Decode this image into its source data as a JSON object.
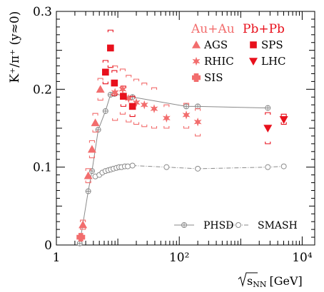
{
  "chart_data": {
    "type": "scatter",
    "title": "",
    "xlabel_prefix": "√",
    "xlabel_sub": "s",
    "xlabel_subscript": "NN",
    "xlabel_unit": "[GeV]",
    "ylabel": "K⁺/π⁺ (y≈0)",
    "xscale": "log",
    "xlim": [
      1,
      16000
    ],
    "ylim": [
      0,
      0.3
    ],
    "grid": false,
    "x_ticks": [
      {
        "value": 1,
        "label": "1"
      },
      {
        "value": 100,
        "label": "10²"
      },
      {
        "value": 10000,
        "label": "10⁴"
      }
    ],
    "y_ticks": [
      {
        "value": 0,
        "label": "0"
      },
      {
        "value": 0.1,
        "label": "0.1"
      },
      {
        "value": 0.2,
        "label": "0.2"
      },
      {
        "value": 0.3,
        "label": "0.3"
      }
    ],
    "legend_headers": [
      {
        "label": "Au+Au",
        "color": "#f26d6d"
      },
      {
        "label": "Pb+Pb",
        "color": "#e8101c"
      }
    ],
    "marker_series": [
      {
        "name": "AGS",
        "marker": "triangle-up",
        "color": "#f26d6d",
        "points": [
          {
            "x": 2.7,
            "y": 0.026
          },
          {
            "x": 3.3,
            "y": 0.089
          },
          {
            "x": 3.8,
            "y": 0.123
          },
          {
            "x": 4.3,
            "y": 0.157
          },
          {
            "x": 5.2,
            "y": 0.2
          }
        ]
      },
      {
        "name": "RHIC",
        "marker": "star",
        "color": "#f26d6d",
        "points": [
          {
            "x": 9,
            "y": 0.196
          },
          {
            "x": 12,
            "y": 0.2
          },
          {
            "x": 15,
            "y": 0.188
          },
          {
            "x": 20,
            "y": 0.183
          },
          {
            "x": 27,
            "y": 0.18
          },
          {
            "x": 39,
            "y": 0.175
          },
          {
            "x": 62,
            "y": 0.163
          },
          {
            "x": 130,
            "y": 0.167
          },
          {
            "x": 200,
            "y": 0.158
          }
        ]
      },
      {
        "name": "SIS",
        "marker": "cross",
        "color": "#f26d6d",
        "points": [
          {
            "x": 2.5,
            "y": 0.01
          }
        ]
      },
      {
        "name": "SPS",
        "marker": "square",
        "color": "#e8101c",
        "points": [
          {
            "x": 6.3,
            "y": 0.222
          },
          {
            "x": 7.6,
            "y": 0.253
          },
          {
            "x": 8.8,
            "y": 0.208
          },
          {
            "x": 12.3,
            "y": 0.191
          },
          {
            "x": 17.3,
            "y": 0.178
          }
        ]
      },
      {
        "name": "LHC",
        "marker": "triangle-down",
        "color": "#e8101c",
        "points": [
          {
            "x": 2760,
            "y": 0.15
          },
          {
            "x": 5020,
            "y": 0.161
          }
        ]
      }
    ],
    "systematic_brackets": [
      {
        "x": 2.7,
        "lo": 0.02,
        "hi": 0.032,
        "color": "#f26d6d"
      },
      {
        "x": 3.3,
        "lo": 0.08,
        "hi": 0.098,
        "color": "#f26d6d"
      },
      {
        "x": 3.8,
        "lo": 0.112,
        "hi": 0.134,
        "color": "#f26d6d"
      },
      {
        "x": 4.3,
        "lo": 0.145,
        "hi": 0.169,
        "color": "#f26d6d"
      },
      {
        "x": 5.2,
        "lo": 0.186,
        "hi": 0.214,
        "color": "#f26d6d"
      },
      {
        "x": 6.3,
        "lo": 0.207,
        "hi": 0.237,
        "color": "#e8101c"
      },
      {
        "x": 7.6,
        "lo": 0.228,
        "hi": 0.276,
        "color": "#e8101c"
      },
      {
        "x": 8.8,
        "lo": 0.192,
        "hi": 0.224,
        "color": "#e8101c"
      },
      {
        "x": 12.3,
        "lo": 0.178,
        "hi": 0.204,
        "color": "#e8101c"
      },
      {
        "x": 17.3,
        "lo": 0.165,
        "hi": 0.191,
        "color": "#e8101c"
      },
      {
        "x": 9,
        "lo": 0.16,
        "hi": 0.23,
        "color": "#f26d6d"
      },
      {
        "x": 12,
        "lo": 0.168,
        "hi": 0.226,
        "color": "#f26d6d"
      },
      {
        "x": 15,
        "lo": 0.158,
        "hi": 0.218,
        "color": "#f26d6d"
      },
      {
        "x": 20,
        "lo": 0.155,
        "hi": 0.213,
        "color": "#f26d6d"
      },
      {
        "x": 27,
        "lo": 0.152,
        "hi": 0.208,
        "color": "#f26d6d"
      },
      {
        "x": 39,
        "lo": 0.15,
        "hi": 0.202,
        "color": "#f26d6d"
      },
      {
        "x": 62,
        "lo": 0.15,
        "hi": 0.18,
        "color": "#f26d6d"
      },
      {
        "x": 130,
        "lo": 0.15,
        "hi": 0.182,
        "color": "#f26d6d"
      },
      {
        "x": 200,
        "lo": 0.14,
        "hi": 0.175,
        "color": "#f26d6d"
      },
      {
        "x": 2760,
        "lo": 0.13,
        "hi": 0.17,
        "color": "#e8101c"
      },
      {
        "x": 5020,
        "lo": 0.155,
        "hi": 0.168,
        "color": "#e8101c"
      }
    ],
    "model_curves": [
      {
        "name": "PHSD",
        "marker": "circle-plus",
        "color": "#8a8a8a",
        "dash": "solid",
        "points": [
          {
            "x": 2.4,
            "y": 0.002
          },
          {
            "x": 3.3,
            "y": 0.069
          },
          {
            "x": 3.8,
            "y": 0.095
          },
          {
            "x": 4.8,
            "y": 0.148
          },
          {
            "x": 6.3,
            "y": 0.172
          },
          {
            "x": 7.6,
            "y": 0.193
          },
          {
            "x": 8.8,
            "y": 0.194
          },
          {
            "x": 12.3,
            "y": 0.192
          },
          {
            "x": 17.3,
            "y": 0.19
          },
          {
            "x": 130,
            "y": 0.178
          },
          {
            "x": 200,
            "y": 0.178
          },
          {
            "x": 2760,
            "y": 0.176
          }
        ]
      },
      {
        "name": "SMASH",
        "marker": "circle",
        "color": "#8a8a8a",
        "dash": "dashdot",
        "points": [
          {
            "x": 4.3,
            "y": 0.088
          },
          {
            "x": 5.0,
            "y": 0.09
          },
          {
            "x": 5.6,
            "y": 0.093
          },
          {
            "x": 6.3,
            "y": 0.095
          },
          {
            "x": 7.0,
            "y": 0.096
          },
          {
            "x": 7.7,
            "y": 0.097
          },
          {
            "x": 8.5,
            "y": 0.098
          },
          {
            "x": 9.5,
            "y": 0.099
          },
          {
            "x": 10.5,
            "y": 0.1
          },
          {
            "x": 11.5,
            "y": 0.1
          },
          {
            "x": 13,
            "y": 0.101
          },
          {
            "x": 14.5,
            "y": 0.101
          },
          {
            "x": 17.3,
            "y": 0.102
          },
          {
            "x": 62,
            "y": 0.1
          },
          {
            "x": 200,
            "y": 0.098
          },
          {
            "x": 2760,
            "y": 0.1
          },
          {
            "x": 5020,
            "y": 0.101
          }
        ]
      }
    ],
    "legend_placement": "top-right (markers), bottom-right (models)"
  }
}
